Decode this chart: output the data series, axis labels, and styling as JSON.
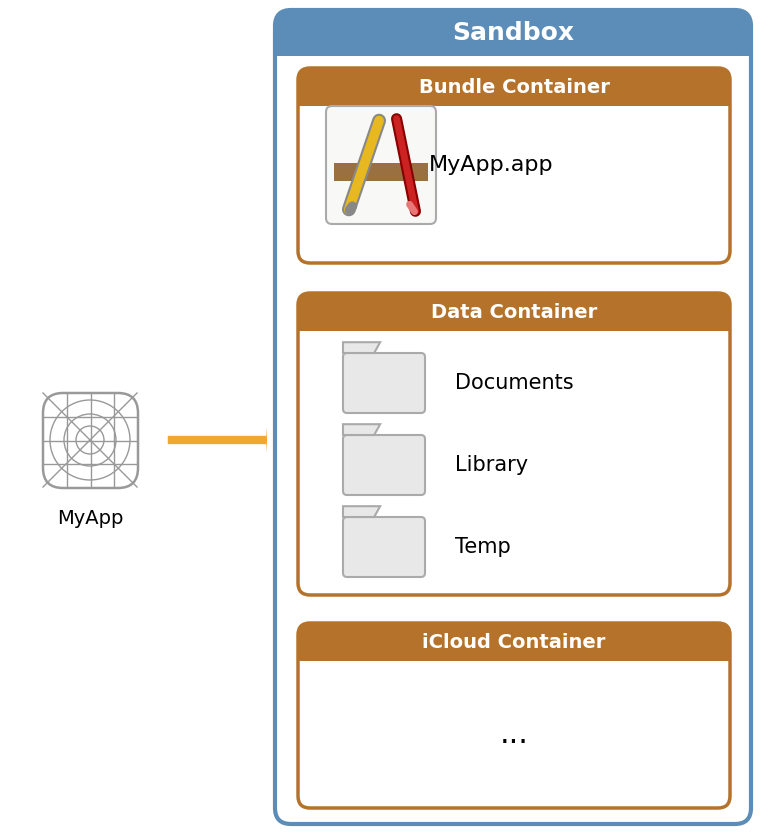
{
  "fig_width": 7.66,
  "fig_height": 8.34,
  "dpi": 100,
  "bg_color": "#ffffff",
  "sandbox_border_color": "#5b8db8",
  "sandbox_header_color": "#5b8db8",
  "sandbox_title": "Sandbox",
  "container_header_color": "#b5722a",
  "container_border_color": "#b5722a",
  "bundle_title": "Bundle Container",
  "bundle_content_label": "MyApp.app",
  "data_title": "Data Container",
  "data_items": [
    "Documents",
    "Library",
    "Temp"
  ],
  "icloud_title": "iCloud Container",
  "icloud_content": "...",
  "arrow_color": "#f0a830",
  "myapp_label": "MyApp",
  "icon_bg_color": "#f8f8f6",
  "icon_border_color": "#aaaaaa",
  "folder_fill": "#e8e8e8",
  "folder_border": "#aaaaaa",
  "pencil_yellow": "#e8b820",
  "pencil_red": "#cc2222",
  "pencil_pink": "#e87878",
  "pencil_brown": "#8B6040",
  "pencil_gray": "#888888",
  "pencil_dark": "#444444",
  "app_icon_color": "#999999",
  "text_color": "#000000",
  "white": "#ffffff"
}
